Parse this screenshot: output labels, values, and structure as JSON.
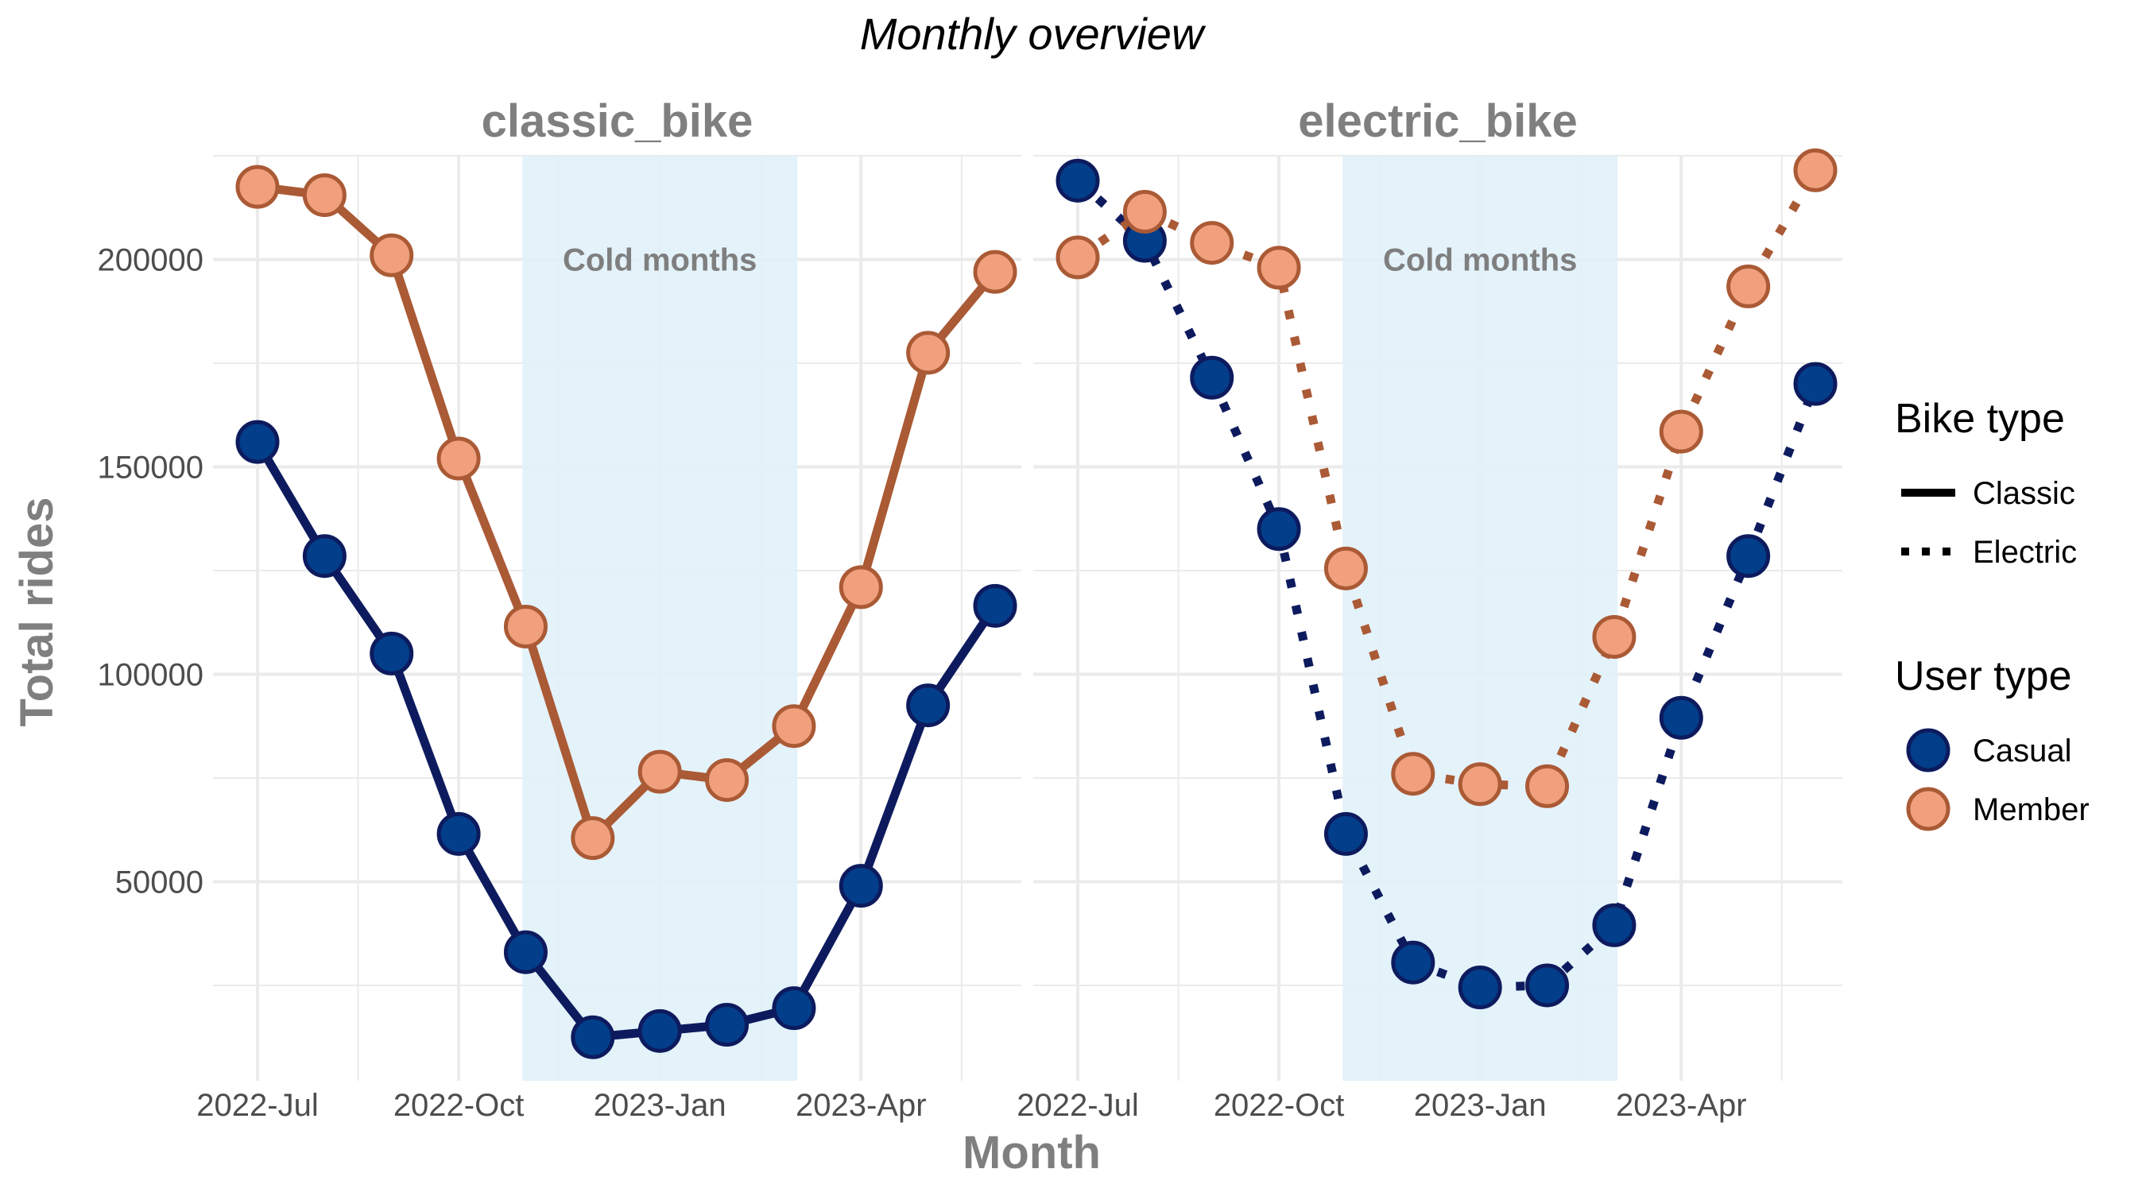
{
  "chart_data": {
    "type": "line",
    "title": "Monthly overview",
    "xlabel": "Month",
    "ylabel": "Total rides",
    "x": [
      "2022-07",
      "2022-08",
      "2022-09",
      "2022-10",
      "2022-11",
      "2022-12",
      "2023-01",
      "2023-02",
      "2023-03",
      "2023-04",
      "2023-05",
      "2023-06"
    ],
    "x_ticks": [
      "2022-Jul",
      "2022-Oct",
      "2023-Jan",
      "2023-Apr"
    ],
    "y_ticks": [
      50000,
      100000,
      150000,
      200000
    ],
    "ylim": [
      2000,
      225000
    ],
    "grid": true,
    "legend_placement": "right",
    "shaded_region": {
      "label": "Cold months",
      "from": "2022-11",
      "to": "2023-03",
      "color": "#e1f1f9"
    },
    "facets": [
      {
        "name": "classic_bike",
        "series": [
          {
            "name": "Casual",
            "values": [
              156000,
              128500,
              105000,
              61500,
              33000,
              12500,
              14000,
              15500,
              19500,
              49000,
              92500,
              116500
            ]
          },
          {
            "name": "Member",
            "values": [
              217500,
              215500,
              201000,
              152000,
              111500,
              60500,
              76500,
              74500,
              87500,
              121000,
              177500,
              197000
            ]
          }
        ]
      },
      {
        "name": "electric_bike",
        "series": [
          {
            "name": "Casual",
            "values": [
              219000,
              204500,
              171500,
              135000,
              61500,
              30500,
              24500,
              25000,
              39500,
              89500,
              128500,
              170000
            ]
          },
          {
            "name": "Member",
            "values": [
              200500,
              211500,
              204000,
              198000,
              125500,
              76000,
              73500,
              73000,
              109000,
              158500,
              193500,
              221500
            ]
          }
        ]
      }
    ],
    "legend": {
      "bike_type": {
        "title": "Bike type",
        "items": [
          "Classic",
          "Electric"
        ]
      },
      "user_type": {
        "title": "User type",
        "items": [
          "Casual",
          "Member"
        ]
      }
    },
    "colors": {
      "casual_line": "#0d1b5e",
      "casual_fill": "#023e8a",
      "member_line": "#aa5a35",
      "member_fill": "#f0a07c",
      "grid": "#ebebeb",
      "shade": "#e1f1f9"
    }
  }
}
